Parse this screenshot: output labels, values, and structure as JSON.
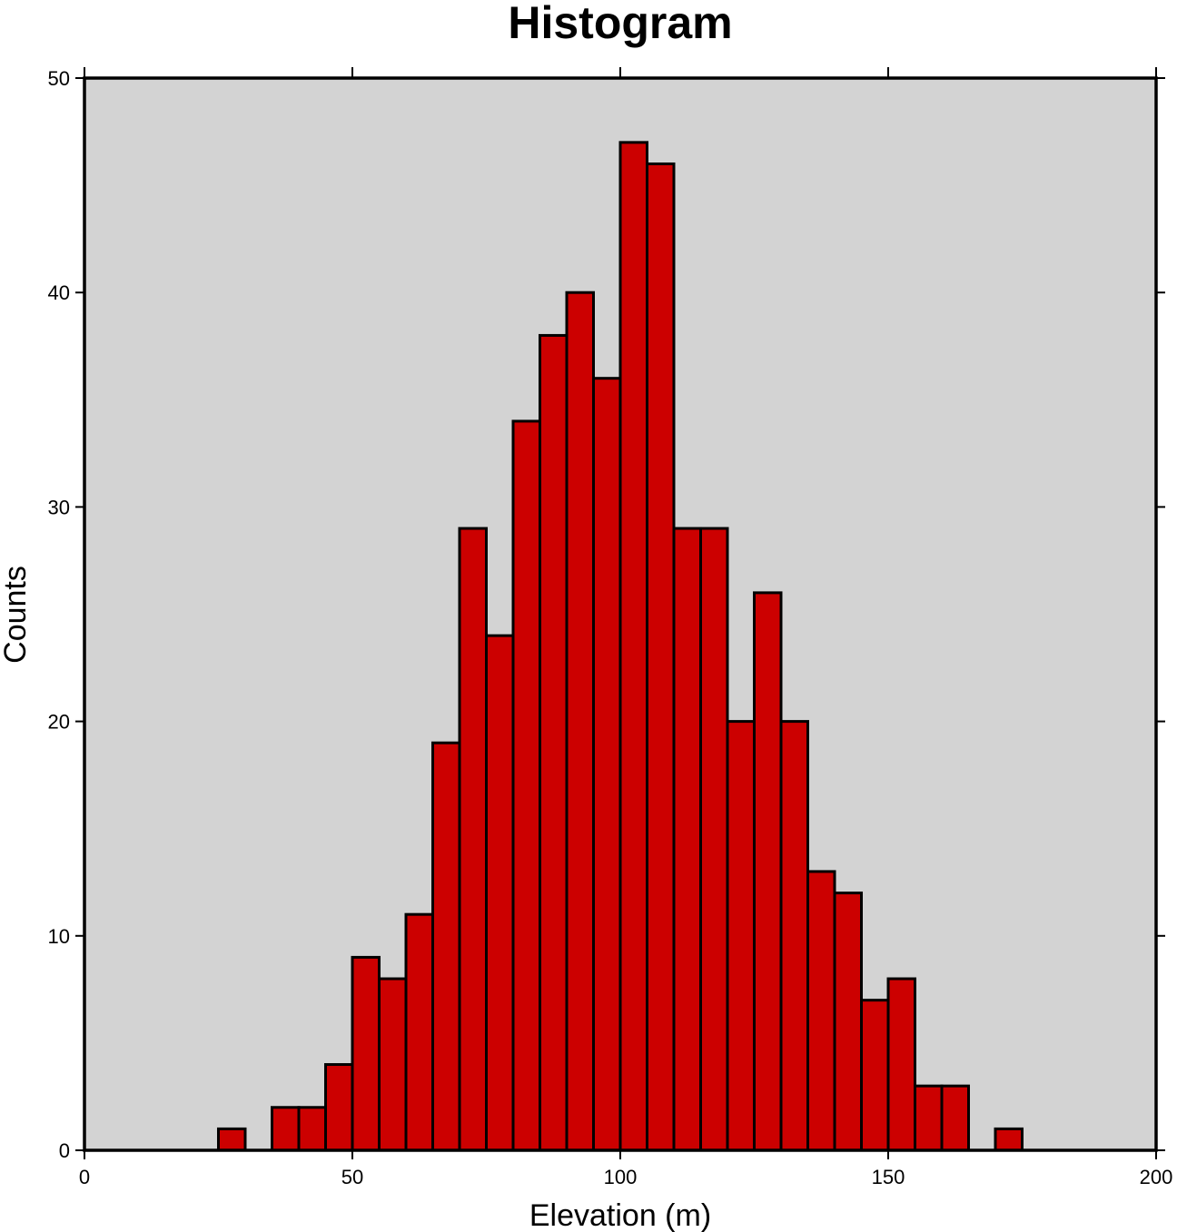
{
  "chart_data": {
    "type": "bar",
    "title": "Histogram",
    "xlabel": "Elevation (m)",
    "ylabel": "Counts",
    "xlim": [
      0,
      200
    ],
    "ylim": [
      0,
      50
    ],
    "xticks": [
      "0",
      "50",
      "100",
      "150",
      "200"
    ],
    "yticks": [
      "0",
      "10",
      "20",
      "30",
      "40",
      "50"
    ],
    "bin_width": 5,
    "bins": [
      {
        "x0": 25,
        "x1": 30,
        "count": 1
      },
      {
        "x0": 35,
        "x1": 40,
        "count": 2
      },
      {
        "x0": 40,
        "x1": 45,
        "count": 2
      },
      {
        "x0": 45,
        "x1": 50,
        "count": 4
      },
      {
        "x0": 50,
        "x1": 55,
        "count": 9
      },
      {
        "x0": 55,
        "x1": 60,
        "count": 8
      },
      {
        "x0": 60,
        "x1": 65,
        "count": 11
      },
      {
        "x0": 65,
        "x1": 70,
        "count": 19
      },
      {
        "x0": 70,
        "x1": 75,
        "count": 29
      },
      {
        "x0": 75,
        "x1": 80,
        "count": 24
      },
      {
        "x0": 80,
        "x1": 85,
        "count": 34
      },
      {
        "x0": 85,
        "x1": 90,
        "count": 38
      },
      {
        "x0": 90,
        "x1": 95,
        "count": 40
      },
      {
        "x0": 95,
        "x1": 100,
        "count": 36
      },
      {
        "x0": 100,
        "x1": 105,
        "count": 47
      },
      {
        "x0": 105,
        "x1": 110,
        "count": 46
      },
      {
        "x0": 110,
        "x1": 115,
        "count": 29
      },
      {
        "x0": 115,
        "x1": 120,
        "count": 29
      },
      {
        "x0": 120,
        "x1": 125,
        "count": 20
      },
      {
        "x0": 125,
        "x1": 130,
        "count": 26
      },
      {
        "x0": 130,
        "x1": 135,
        "count": 20
      },
      {
        "x0": 135,
        "x1": 140,
        "count": 13
      },
      {
        "x0": 140,
        "x1": 145,
        "count": 12
      },
      {
        "x0": 145,
        "x1": 150,
        "count": 7
      },
      {
        "x0": 150,
        "x1": 155,
        "count": 8
      },
      {
        "x0": 155,
        "x1": 160,
        "count": 3
      },
      {
        "x0": 160,
        "x1": 165,
        "count": 3
      },
      {
        "x0": 170,
        "x1": 175,
        "count": 1
      }
    ],
    "grid": false,
    "colors": {
      "bar_fill": "#cc0000",
      "bar_stroke": "#000000",
      "plot_background": "#d3d3d3"
    }
  }
}
